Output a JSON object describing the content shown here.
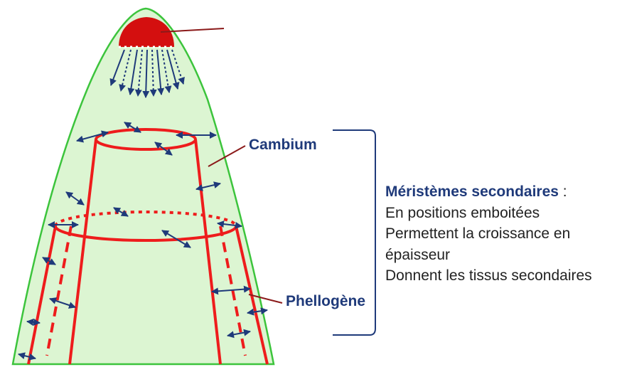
{
  "labels": {
    "cambium": "Cambium",
    "phellogene": "Phellogène"
  },
  "description": {
    "title": "Méristèmes secondaires",
    "title_suffix": " :",
    "lines": [
      "En positions emboitées",
      "Permettent la croissance en",
      "épaisseur",
      "Donnent les tissus secondaires"
    ]
  },
  "colors": {
    "tissue_fill": "#dcf5d2",
    "outline": "#3cc43c",
    "meristem": "#ee1c1c",
    "apex_meristem": "#d40f0f",
    "arrows": "#1f3a7a",
    "pointer": "#8b1a1a",
    "bracket": "#1f3a7a"
  }
}
